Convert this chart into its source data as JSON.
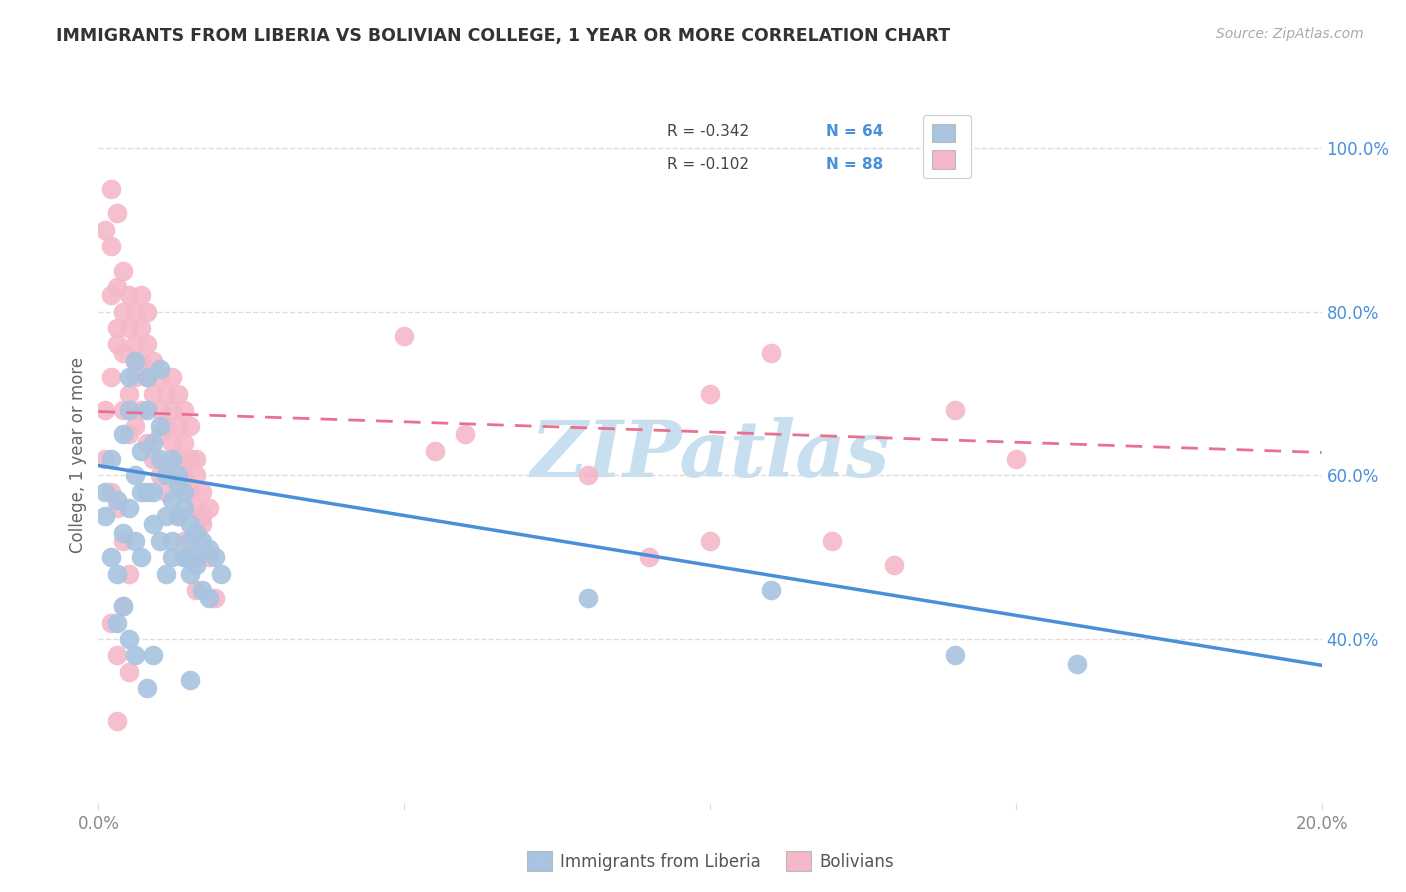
{
  "title": "IMMIGRANTS FROM LIBERIA VS BOLIVIAN COLLEGE, 1 YEAR OR MORE CORRELATION CHART",
  "source": "Source: ZipAtlas.com",
  "ylabel": "College, 1 year or more",
  "xlim": [
    0.0,
    0.2
  ],
  "ylim": [
    0.2,
    1.05
  ],
  "x_ticks": [
    0.0,
    0.05,
    0.1,
    0.15,
    0.2
  ],
  "x_tick_labels": [
    "0.0%",
    "",
    "",
    "",
    "20.0%"
  ],
  "y_ticks_right": [
    0.4,
    0.6,
    0.8,
    1.0
  ],
  "y_tick_labels_right": [
    "40.0%",
    "60.0%",
    "80.0%",
    "100.0%"
  ],
  "legend_labels": [
    "Immigrants from Liberia",
    "Bolivians"
  ],
  "legend_R": [
    "R = -0.342",
    "R = -0.102"
  ],
  "legend_N": [
    "N = 64",
    "N = 88"
  ],
  "blue_color": "#a8c4e0",
  "pink_color": "#f4b8c8",
  "blue_line_color": "#4a90d9",
  "pink_line_color": "#e87090",
  "blue_dots": [
    [
      0.001,
      0.58
    ],
    [
      0.002,
      0.62
    ],
    [
      0.003,
      0.57
    ],
    [
      0.004,
      0.65
    ],
    [
      0.005,
      0.72
    ],
    [
      0.005,
      0.68
    ],
    [
      0.006,
      0.74
    ],
    [
      0.006,
      0.6
    ],
    [
      0.007,
      0.63
    ],
    [
      0.007,
      0.58
    ],
    [
      0.008,
      0.68
    ],
    [
      0.008,
      0.72
    ],
    [
      0.009,
      0.64
    ],
    [
      0.009,
      0.58
    ],
    [
      0.01,
      0.66
    ],
    [
      0.01,
      0.62
    ],
    [
      0.011,
      0.55
    ],
    [
      0.011,
      0.6
    ],
    [
      0.012,
      0.57
    ],
    [
      0.012,
      0.52
    ],
    [
      0.013,
      0.59
    ],
    [
      0.013,
      0.55
    ],
    [
      0.014,
      0.56
    ],
    [
      0.014,
      0.5
    ],
    [
      0.015,
      0.54
    ],
    [
      0.015,
      0.52
    ],
    [
      0.016,
      0.53
    ],
    [
      0.016,
      0.49
    ],
    [
      0.017,
      0.52
    ],
    [
      0.018,
      0.51
    ],
    [
      0.019,
      0.5
    ],
    [
      0.02,
      0.48
    ],
    [
      0.003,
      0.48
    ],
    [
      0.004,
      0.53
    ],
    [
      0.005,
      0.56
    ],
    [
      0.006,
      0.52
    ],
    [
      0.007,
      0.5
    ],
    [
      0.008,
      0.58
    ],
    [
      0.009,
      0.54
    ],
    [
      0.01,
      0.52
    ],
    [
      0.011,
      0.48
    ],
    [
      0.012,
      0.62
    ],
    [
      0.013,
      0.6
    ],
    [
      0.014,
      0.58
    ],
    [
      0.015,
      0.48
    ],
    [
      0.016,
      0.5
    ],
    [
      0.017,
      0.46
    ],
    [
      0.018,
      0.45
    ],
    [
      0.001,
      0.55
    ],
    [
      0.002,
      0.5
    ],
    [
      0.003,
      0.42
    ],
    [
      0.004,
      0.44
    ],
    [
      0.005,
      0.4
    ],
    [
      0.006,
      0.38
    ],
    [
      0.008,
      0.34
    ],
    [
      0.009,
      0.38
    ],
    [
      0.01,
      0.73
    ],
    [
      0.012,
      0.5
    ],
    [
      0.014,
      0.5
    ],
    [
      0.015,
      0.35
    ],
    [
      0.08,
      0.45
    ],
    [
      0.11,
      0.46
    ],
    [
      0.14,
      0.38
    ],
    [
      0.16,
      0.37
    ]
  ],
  "pink_dots": [
    [
      0.001,
      0.9
    ],
    [
      0.002,
      0.88
    ],
    [
      0.002,
      0.82
    ],
    [
      0.003,
      0.78
    ],
    [
      0.003,
      0.83
    ],
    [
      0.004,
      0.85
    ],
    [
      0.004,
      0.8
    ],
    [
      0.005,
      0.82
    ],
    [
      0.005,
      0.78
    ],
    [
      0.006,
      0.8
    ],
    [
      0.006,
      0.76
    ],
    [
      0.007,
      0.78
    ],
    [
      0.007,
      0.74
    ],
    [
      0.007,
      0.82
    ],
    [
      0.008,
      0.76
    ],
    [
      0.008,
      0.72
    ],
    [
      0.008,
      0.8
    ],
    [
      0.009,
      0.74
    ],
    [
      0.009,
      0.7
    ],
    [
      0.01,
      0.72
    ],
    [
      0.01,
      0.68
    ],
    [
      0.011,
      0.7
    ],
    [
      0.011,
      0.66
    ],
    [
      0.012,
      0.68
    ],
    [
      0.012,
      0.64
    ],
    [
      0.013,
      0.66
    ],
    [
      0.013,
      0.62
    ],
    [
      0.014,
      0.64
    ],
    [
      0.014,
      0.6
    ],
    [
      0.015,
      0.62
    ],
    [
      0.015,
      0.58
    ],
    [
      0.016,
      0.6
    ],
    [
      0.016,
      0.56
    ],
    [
      0.017,
      0.58
    ],
    [
      0.017,
      0.54
    ],
    [
      0.018,
      0.56
    ],
    [
      0.002,
      0.95
    ],
    [
      0.003,
      0.92
    ],
    [
      0.004,
      0.68
    ],
    [
      0.005,
      0.65
    ],
    [
      0.006,
      0.72
    ],
    [
      0.007,
      0.68
    ],
    [
      0.008,
      0.64
    ],
    [
      0.009,
      0.62
    ],
    [
      0.01,
      0.65
    ],
    [
      0.01,
      0.6
    ],
    [
      0.011,
      0.58
    ],
    [
      0.012,
      0.72
    ],
    [
      0.013,
      0.7
    ],
    [
      0.014,
      0.68
    ],
    [
      0.015,
      0.5
    ],
    [
      0.016,
      0.46
    ],
    [
      0.001,
      0.68
    ],
    [
      0.002,
      0.72
    ],
    [
      0.003,
      0.76
    ],
    [
      0.004,
      0.75
    ],
    [
      0.005,
      0.7
    ],
    [
      0.006,
      0.66
    ],
    [
      0.001,
      0.62
    ],
    [
      0.002,
      0.58
    ],
    [
      0.003,
      0.56
    ],
    [
      0.004,
      0.52
    ],
    [
      0.005,
      0.48
    ],
    [
      0.002,
      0.42
    ],
    [
      0.003,
      0.38
    ],
    [
      0.004,
      0.44
    ],
    [
      0.005,
      0.36
    ],
    [
      0.006,
      0.74
    ],
    [
      0.05,
      0.77
    ],
    [
      0.06,
      0.65
    ],
    [
      0.09,
      0.5
    ],
    [
      0.1,
      0.7
    ],
    [
      0.1,
      0.52
    ],
    [
      0.11,
      0.75
    ],
    [
      0.12,
      0.52
    ],
    [
      0.13,
      0.49
    ],
    [
      0.14,
      0.68
    ],
    [
      0.15,
      0.62
    ],
    [
      0.055,
      0.63
    ],
    [
      0.08,
      0.6
    ],
    [
      0.013,
      0.55
    ],
    [
      0.014,
      0.52
    ],
    [
      0.015,
      0.66
    ],
    [
      0.016,
      0.62
    ],
    [
      0.017,
      0.55
    ],
    [
      0.018,
      0.5
    ],
    [
      0.019,
      0.45
    ],
    [
      0.003,
      0.3
    ]
  ],
  "blue_trendline": [
    [
      0.0,
      0.612
    ],
    [
      0.2,
      0.368
    ]
  ],
  "pink_trendline": [
    [
      0.0,
      0.678
    ],
    [
      0.2,
      0.628
    ]
  ],
  "watermark": "ZIPatlas",
  "watermark_color": "#c8dff0",
  "background_color": "#ffffff",
  "grid_color": "#dddddd",
  "title_color": "#333333",
  "source_color": "#aaaaaa",
  "ylabel_color": "#666666",
  "tick_color": "#888888",
  "right_tick_color": "#4a90d9"
}
